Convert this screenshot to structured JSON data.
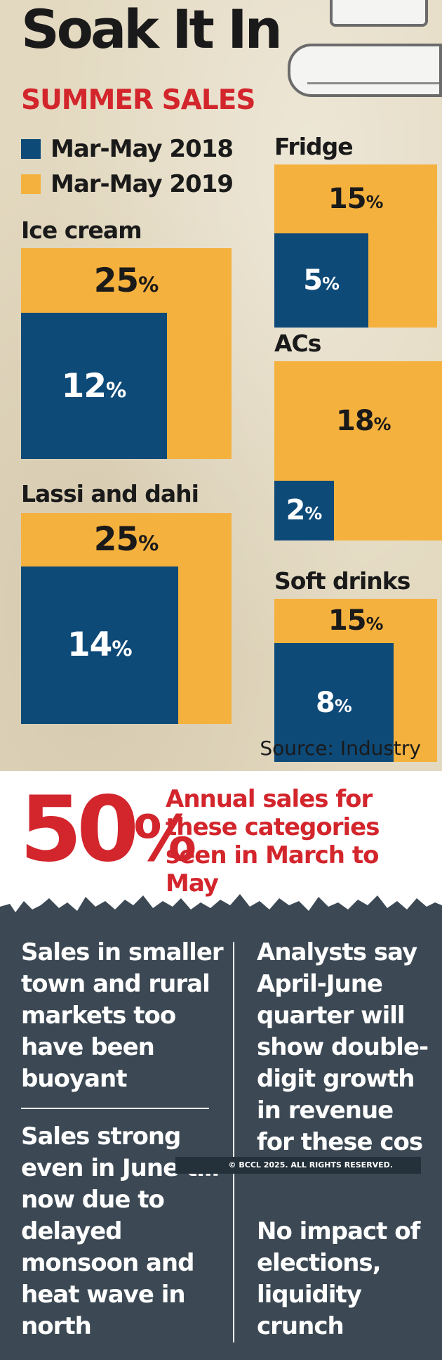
{
  "header": {
    "title": "Soak It In",
    "subtitle": "SUMMER SALES"
  },
  "legend": [
    {
      "label": "Mar-May 2018",
      "color": "#0e4a78"
    },
    {
      "label": "Mar-May 2019",
      "color": "#f5b13d"
    }
  ],
  "chart_data": {
    "type": "bar",
    "unit": "%",
    "categories": [
      "Ice cream",
      "Lassi and dahi",
      "Fridge",
      "ACs",
      "Soft drinks"
    ],
    "series": [
      {
        "name": "Mar-May 2018",
        "color": "#0e4a78",
        "values": [
          12,
          14,
          5,
          2,
          8
        ]
      },
      {
        "name": "Mar-May 2019",
        "color": "#f5b13d",
        "values": [
          25,
          25,
          15,
          18,
          15
        ]
      }
    ]
  },
  "panels": [
    {
      "title": "Ice cream",
      "v2018": "12",
      "v2019": "25",
      "pct": "%"
    },
    {
      "title": "Lassi and dahi",
      "v2018": "14",
      "v2019": "25",
      "pct": "%"
    },
    {
      "title": "Fridge",
      "v2018": "5",
      "v2019": "15",
      "pct": "%"
    },
    {
      "title": "ACs",
      "v2018": "2",
      "v2019": "18",
      "pct": "%"
    },
    {
      "title": "Soft drinks",
      "v2018": "8",
      "v2019": "15",
      "pct": "%"
    }
  ],
  "source": "Source: Industry",
  "highlight": {
    "number": "50",
    "pct": "%",
    "text": "Annual sales for these categories seen in March to May"
  },
  "notes": {
    "left_top": "Sales in smaller town and rural markets too have been buoyant",
    "left_bottom": "Sales strong even in June till now due to delayed monsoon and heat wave in north",
    "right_top": "Analysts say April-June quarter will show double-digit growth in revenue for these cos",
    "right_bottom": "No impact of elections, liquidity crunch"
  },
  "copyright": "© BCCL 2025. ALL RIGHTS RESERVED."
}
